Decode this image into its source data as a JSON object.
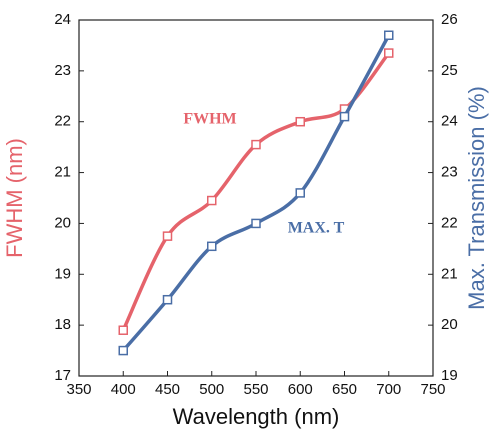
{
  "chart_data": {
    "type": "line",
    "xlabel": "Wavelength (nm)",
    "ylabel": "FWHM (nm)",
    "y2label": "Max. Transmission (%)",
    "x": [
      400,
      450,
      500,
      550,
      600,
      650,
      700
    ],
    "series": [
      {
        "name": "FWHM",
        "color": "#e5636b",
        "values": [
          17.9,
          19.75,
          20.45,
          21.55,
          22.0,
          22.25,
          23.35
        ]
      },
      {
        "name": "MAX. T",
        "color": "#4a6ea6",
        "axis": "y2",
        "values": [
          19.5,
          20.5,
          21.55,
          22.0,
          22.6,
          24.1,
          25.7
        ]
      }
    ],
    "xlim": [
      350,
      750
    ],
    "xticks": [
      350,
      400,
      450,
      500,
      550,
      600,
      650,
      700,
      750
    ],
    "ylim": [
      17,
      24
    ],
    "yticks": [
      17,
      18,
      19,
      20,
      21,
      22,
      23,
      24
    ],
    "y2lim": [
      19,
      26
    ],
    "y2ticks": [
      19,
      20,
      21,
      22,
      23,
      24,
      25,
      26
    ]
  }
}
